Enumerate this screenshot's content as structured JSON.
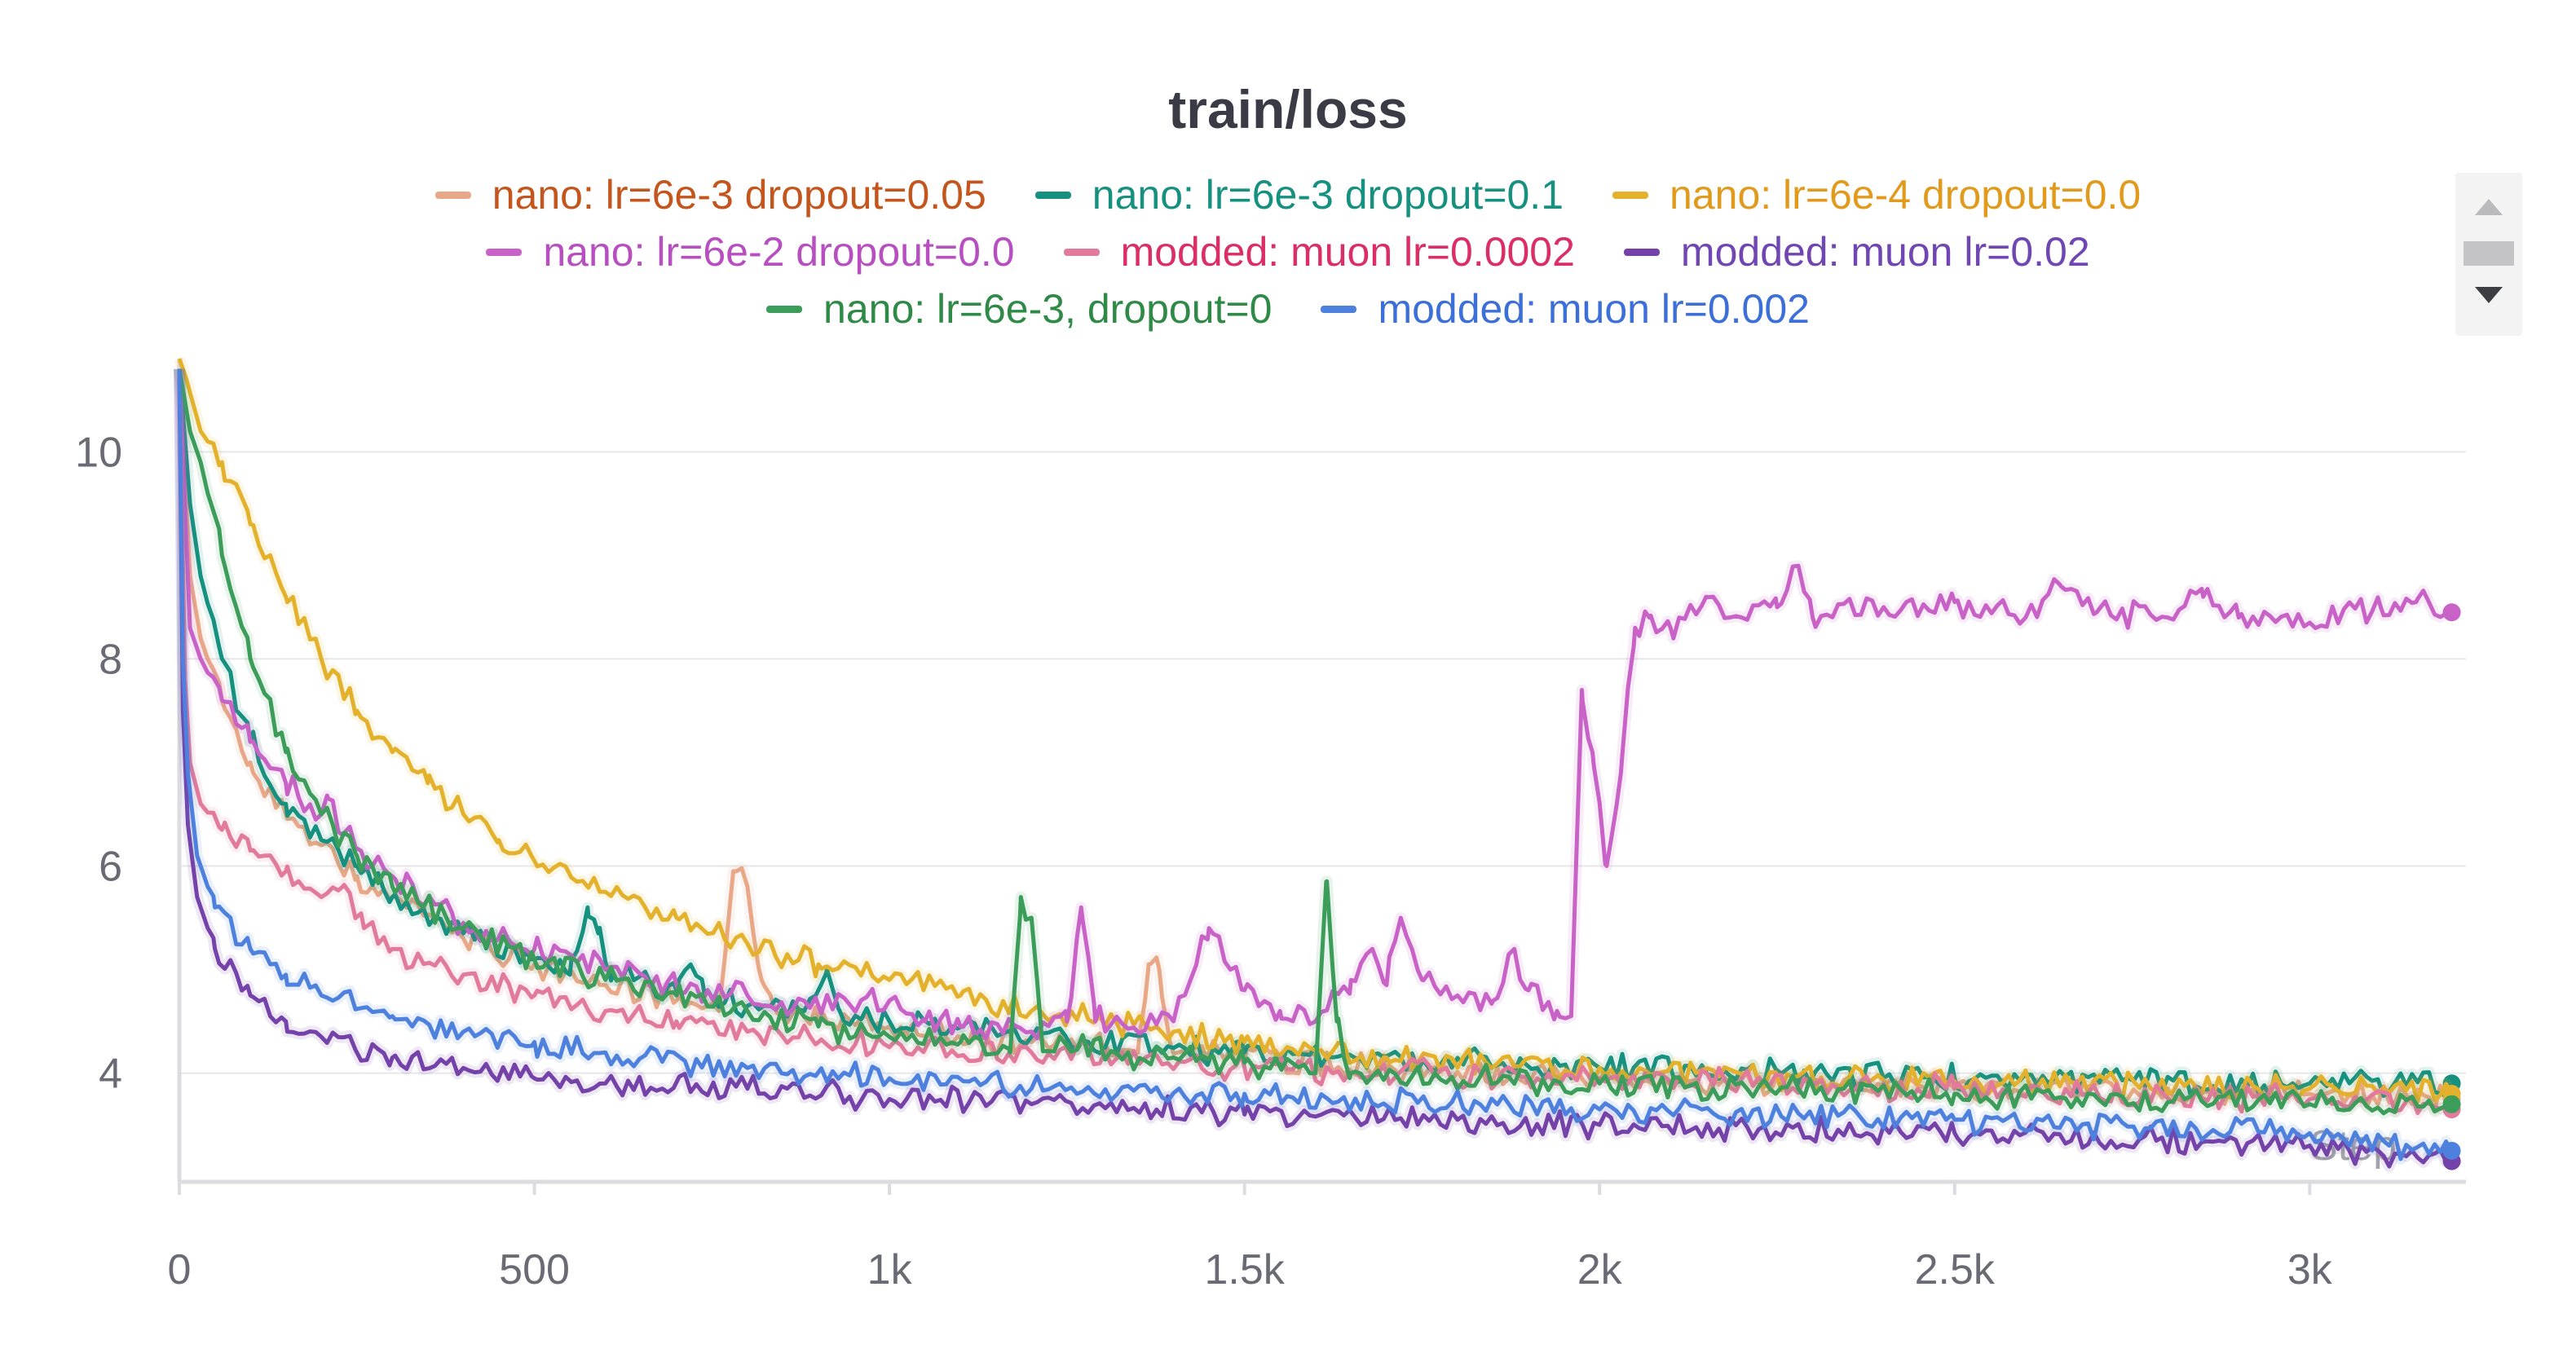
{
  "chart_data": {
    "type": "line",
    "title": "train/loss",
    "xlabel": "Step",
    "ylabel": "",
    "xlim": [
      0,
      3220
    ],
    "ylim": [
      2.95,
      10.9
    ],
    "x_ticks": [
      0,
      500,
      1000,
      1500,
      2000,
      2500,
      3000
    ],
    "x_tick_labels": [
      "0",
      "500",
      "1k",
      "1.5k",
      "2k",
      "2.5k",
      "3k"
    ],
    "y_ticks": [
      4,
      6,
      8,
      10
    ],
    "y_tick_labels": [
      "4",
      "6",
      "8",
      "10"
    ],
    "grid": true,
    "legend_position": "top",
    "legend_rows": [
      [
        0,
        1,
        2
      ],
      [
        3,
        4,
        5
      ],
      [
        6,
        7
      ]
    ],
    "series": [
      {
        "name": "nano: lr=6e-3 dropout=0.05",
        "color": "#e8a888",
        "label_color": "#c4551d",
        "points": [
          [
            0,
            10.8
          ],
          [
            15,
            8.8
          ],
          [
            30,
            8.2
          ],
          [
            60,
            7.6
          ],
          [
            100,
            7.0
          ],
          [
            150,
            6.5
          ],
          [
            200,
            6.2
          ],
          [
            250,
            5.9
          ],
          [
            300,
            5.7
          ],
          [
            400,
            5.3
          ],
          [
            500,
            5.05
          ],
          [
            600,
            4.85
          ],
          [
            700,
            4.7
          ],
          [
            760,
            4.6
          ],
          [
            780,
            5.95
          ],
          [
            800,
            5.8
          ],
          [
            820,
            4.9
          ],
          [
            840,
            4.6
          ],
          [
            900,
            4.5
          ],
          [
            1000,
            4.45
          ],
          [
            1100,
            4.35
          ],
          [
            1200,
            4.3
          ],
          [
            1300,
            4.25
          ],
          [
            1350,
            4.2
          ],
          [
            1365,
            5.05
          ],
          [
            1380,
            5.0
          ],
          [
            1395,
            4.3
          ],
          [
            1450,
            4.2
          ],
          [
            1500,
            4.15
          ],
          [
            1700,
            4.05
          ],
          [
            2000,
            3.95
          ],
          [
            2500,
            3.85
          ],
          [
            3000,
            3.8
          ],
          [
            3200,
            3.75
          ]
        ]
      },
      {
        "name": "nano: lr=6e-3 dropout=0.1",
        "color": "#16907f",
        "label_color": "#16907f",
        "points": [
          [
            0,
            10.8
          ],
          [
            15,
            9.5
          ],
          [
            30,
            8.8
          ],
          [
            60,
            8.0
          ],
          [
            100,
            7.2
          ],
          [
            150,
            6.6
          ],
          [
            200,
            6.25
          ],
          [
            250,
            6.0
          ],
          [
            300,
            5.7
          ],
          [
            400,
            5.35
          ],
          [
            500,
            5.1
          ],
          [
            550,
            4.95
          ],
          [
            575,
            5.6
          ],
          [
            590,
            5.35
          ],
          [
            610,
            4.95
          ],
          [
            700,
            4.8
          ],
          [
            720,
            5.05
          ],
          [
            740,
            4.75
          ],
          [
            800,
            4.65
          ],
          [
            880,
            4.6
          ],
          [
            910,
            4.95
          ],
          [
            930,
            4.6
          ],
          [
            1000,
            4.5
          ],
          [
            1200,
            4.35
          ],
          [
            1500,
            4.2
          ],
          [
            2000,
            4.05
          ],
          [
            2500,
            3.95
          ],
          [
            3000,
            3.9
          ],
          [
            3200,
            3.9
          ]
        ]
      },
      {
        "name": "nano: lr=6e-4 dropout=0.0",
        "color": "#e3b12c",
        "label_color": "#e19a1c",
        "points": [
          [
            0,
            10.9
          ],
          [
            10,
            10.7
          ],
          [
            30,
            10.2
          ],
          [
            60,
            9.9
          ],
          [
            100,
            9.3
          ],
          [
            150,
            8.6
          ],
          [
            200,
            8.0
          ],
          [
            250,
            7.5
          ],
          [
            300,
            7.1
          ],
          [
            350,
            6.8
          ],
          [
            400,
            6.5
          ],
          [
            450,
            6.25
          ],
          [
            500,
            6.05
          ],
          [
            600,
            5.75
          ],
          [
            700,
            5.5
          ],
          [
            800,
            5.25
          ],
          [
            900,
            5.05
          ],
          [
            1000,
            4.9
          ],
          [
            1100,
            4.75
          ],
          [
            1200,
            4.6
          ],
          [
            1300,
            4.5
          ],
          [
            1400,
            4.4
          ],
          [
            1500,
            4.3
          ],
          [
            1700,
            4.15
          ],
          [
            2000,
            4.05
          ],
          [
            2500,
            3.92
          ],
          [
            3000,
            3.85
          ],
          [
            3200,
            3.8
          ]
        ]
      },
      {
        "name": "nano: lr=6e-2 dropout=0.0",
        "color": "#c862c6",
        "label_color": "#b84fc1",
        "points": [
          [
            0,
            10.8
          ],
          [
            15,
            8.3
          ],
          [
            30,
            8.0
          ],
          [
            60,
            7.6
          ],
          [
            100,
            7.2
          ],
          [
            150,
            6.8
          ],
          [
            200,
            6.5
          ],
          [
            210,
            6.65
          ],
          [
            230,
            6.3
          ],
          [
            300,
            5.9
          ],
          [
            400,
            5.45
          ],
          [
            500,
            5.2
          ],
          [
            600,
            5.0
          ],
          [
            700,
            4.85
          ],
          [
            800,
            4.75
          ],
          [
            900,
            4.65
          ],
          [
            1000,
            4.7
          ],
          [
            1050,
            4.5
          ],
          [
            1100,
            4.45
          ],
          [
            1200,
            4.4
          ],
          [
            1250,
            4.5
          ],
          [
            1270,
            5.6
          ],
          [
            1290,
            4.5
          ],
          [
            1400,
            4.5
          ],
          [
            1450,
            5.4
          ],
          [
            1480,
            5.0
          ],
          [
            1500,
            4.8
          ],
          [
            1550,
            4.6
          ],
          [
            1600,
            4.5
          ],
          [
            1650,
            4.9
          ],
          [
            1680,
            5.2
          ],
          [
            1700,
            4.85
          ],
          [
            1720,
            5.5
          ],
          [
            1750,
            4.9
          ],
          [
            1800,
            4.75
          ],
          [
            1850,
            4.7
          ],
          [
            1880,
            5.2
          ],
          [
            1900,
            4.8
          ],
          [
            1940,
            4.6
          ],
          [
            1960,
            4.55
          ],
          [
            1975,
            7.7
          ],
          [
            1990,
            7.1
          ],
          [
            2010,
            6.0
          ],
          [
            2030,
            6.9
          ],
          [
            2050,
            8.3
          ],
          [
            2070,
            8.4
          ],
          [
            2100,
            8.3
          ],
          [
            2150,
            8.6
          ],
          [
            2200,
            8.4
          ],
          [
            2250,
            8.5
          ],
          [
            2280,
            8.9
          ],
          [
            2300,
            8.4
          ],
          [
            2400,
            8.5
          ],
          [
            2500,
            8.55
          ],
          [
            2600,
            8.4
          ],
          [
            2650,
            8.7
          ],
          [
            2700,
            8.45
          ],
          [
            2800,
            8.4
          ],
          [
            2850,
            8.6
          ],
          [
            2900,
            8.4
          ],
          [
            3000,
            8.35
          ],
          [
            3100,
            8.5
          ],
          [
            3150,
            8.55
          ],
          [
            3200,
            8.45
          ]
        ]
      },
      {
        "name": "modded: muon lr=0.0002",
        "color": "#e27a9b",
        "label_color": "#db2d66",
        "points": [
          [
            0,
            10.8
          ],
          [
            8,
            7.8
          ],
          [
            15,
            7.0
          ],
          [
            30,
            6.6
          ],
          [
            60,
            6.35
          ],
          [
            100,
            6.15
          ],
          [
            150,
            5.95
          ],
          [
            200,
            5.7
          ],
          [
            230,
            5.8
          ],
          [
            260,
            5.4
          ],
          [
            300,
            5.2
          ],
          [
            400,
            4.95
          ],
          [
            500,
            4.75
          ],
          [
            600,
            4.6
          ],
          [
            700,
            4.5
          ],
          [
            800,
            4.4
          ],
          [
            900,
            4.3
          ],
          [
            1000,
            4.25
          ],
          [
            1200,
            4.2
          ],
          [
            1500,
            4.05
          ],
          [
            2000,
            3.95
          ],
          [
            2500,
            3.85
          ],
          [
            3000,
            3.75
          ],
          [
            3200,
            3.65
          ]
        ]
      },
      {
        "name": "modded: muon lr=0.02",
        "color": "#7442a9",
        "label_color": "#6f46b2",
        "points": [
          [
            0,
            10.8
          ],
          [
            5,
            7.5
          ],
          [
            12,
            6.4
          ],
          [
            25,
            5.7
          ],
          [
            50,
            5.2
          ],
          [
            100,
            4.75
          ],
          [
            150,
            4.5
          ],
          [
            200,
            4.35
          ],
          [
            300,
            4.15
          ],
          [
            400,
            4.05
          ],
          [
            500,
            3.95
          ],
          [
            600,
            3.9
          ],
          [
            800,
            3.85
          ],
          [
            1000,
            3.75
          ],
          [
            1200,
            3.7
          ],
          [
            1500,
            3.6
          ],
          [
            1800,
            3.55
          ],
          [
            2000,
            3.5
          ],
          [
            2500,
            3.42
          ],
          [
            3000,
            3.3
          ],
          [
            3200,
            3.15
          ]
        ]
      },
      {
        "name": "nano: lr=6e-3, dropout=0",
        "color": "#3c9d5a",
        "label_color": "#2f8a47",
        "points": [
          [
            0,
            10.8
          ],
          [
            15,
            10.2
          ],
          [
            30,
            9.9
          ],
          [
            60,
            9.0
          ],
          [
            100,
            8.0
          ],
          [
            150,
            7.1
          ],
          [
            200,
            6.5
          ],
          [
            250,
            6.1
          ],
          [
            300,
            5.8
          ],
          [
            400,
            5.4
          ],
          [
            500,
            5.1
          ],
          [
            600,
            4.9
          ],
          [
            700,
            4.75
          ],
          [
            800,
            4.6
          ],
          [
            900,
            4.45
          ],
          [
            1000,
            4.35
          ],
          [
            1100,
            4.3
          ],
          [
            1170,
            4.2
          ],
          [
            1185,
            5.7
          ],
          [
            1200,
            5.5
          ],
          [
            1215,
            4.3
          ],
          [
            1300,
            4.2
          ],
          [
            1500,
            4.1
          ],
          [
            1600,
            4.0
          ],
          [
            1615,
            5.85
          ],
          [
            1630,
            4.5
          ],
          [
            1650,
            4.0
          ],
          [
            2000,
            3.9
          ],
          [
            2500,
            3.8
          ],
          [
            3000,
            3.7
          ],
          [
            3200,
            3.7
          ]
        ]
      },
      {
        "name": "modded: muon lr=0.002",
        "color": "#4e80dd",
        "label_color": "#3c6fd8",
        "points": [
          [
            0,
            10.8
          ],
          [
            5,
            8.0
          ],
          [
            12,
            6.9
          ],
          [
            25,
            6.1
          ],
          [
            50,
            5.6
          ],
          [
            100,
            5.2
          ],
          [
            150,
            4.95
          ],
          [
            200,
            4.75
          ],
          [
            300,
            4.55
          ],
          [
            400,
            4.4
          ],
          [
            500,
            4.3
          ],
          [
            600,
            4.2
          ],
          [
            800,
            4.05
          ],
          [
            1000,
            3.95
          ],
          [
            1200,
            3.85
          ],
          [
            1500,
            3.8
          ],
          [
            2000,
            3.65
          ],
          [
            2500,
            3.55
          ],
          [
            3000,
            3.42
          ],
          [
            3200,
            3.25
          ]
        ]
      }
    ]
  }
}
